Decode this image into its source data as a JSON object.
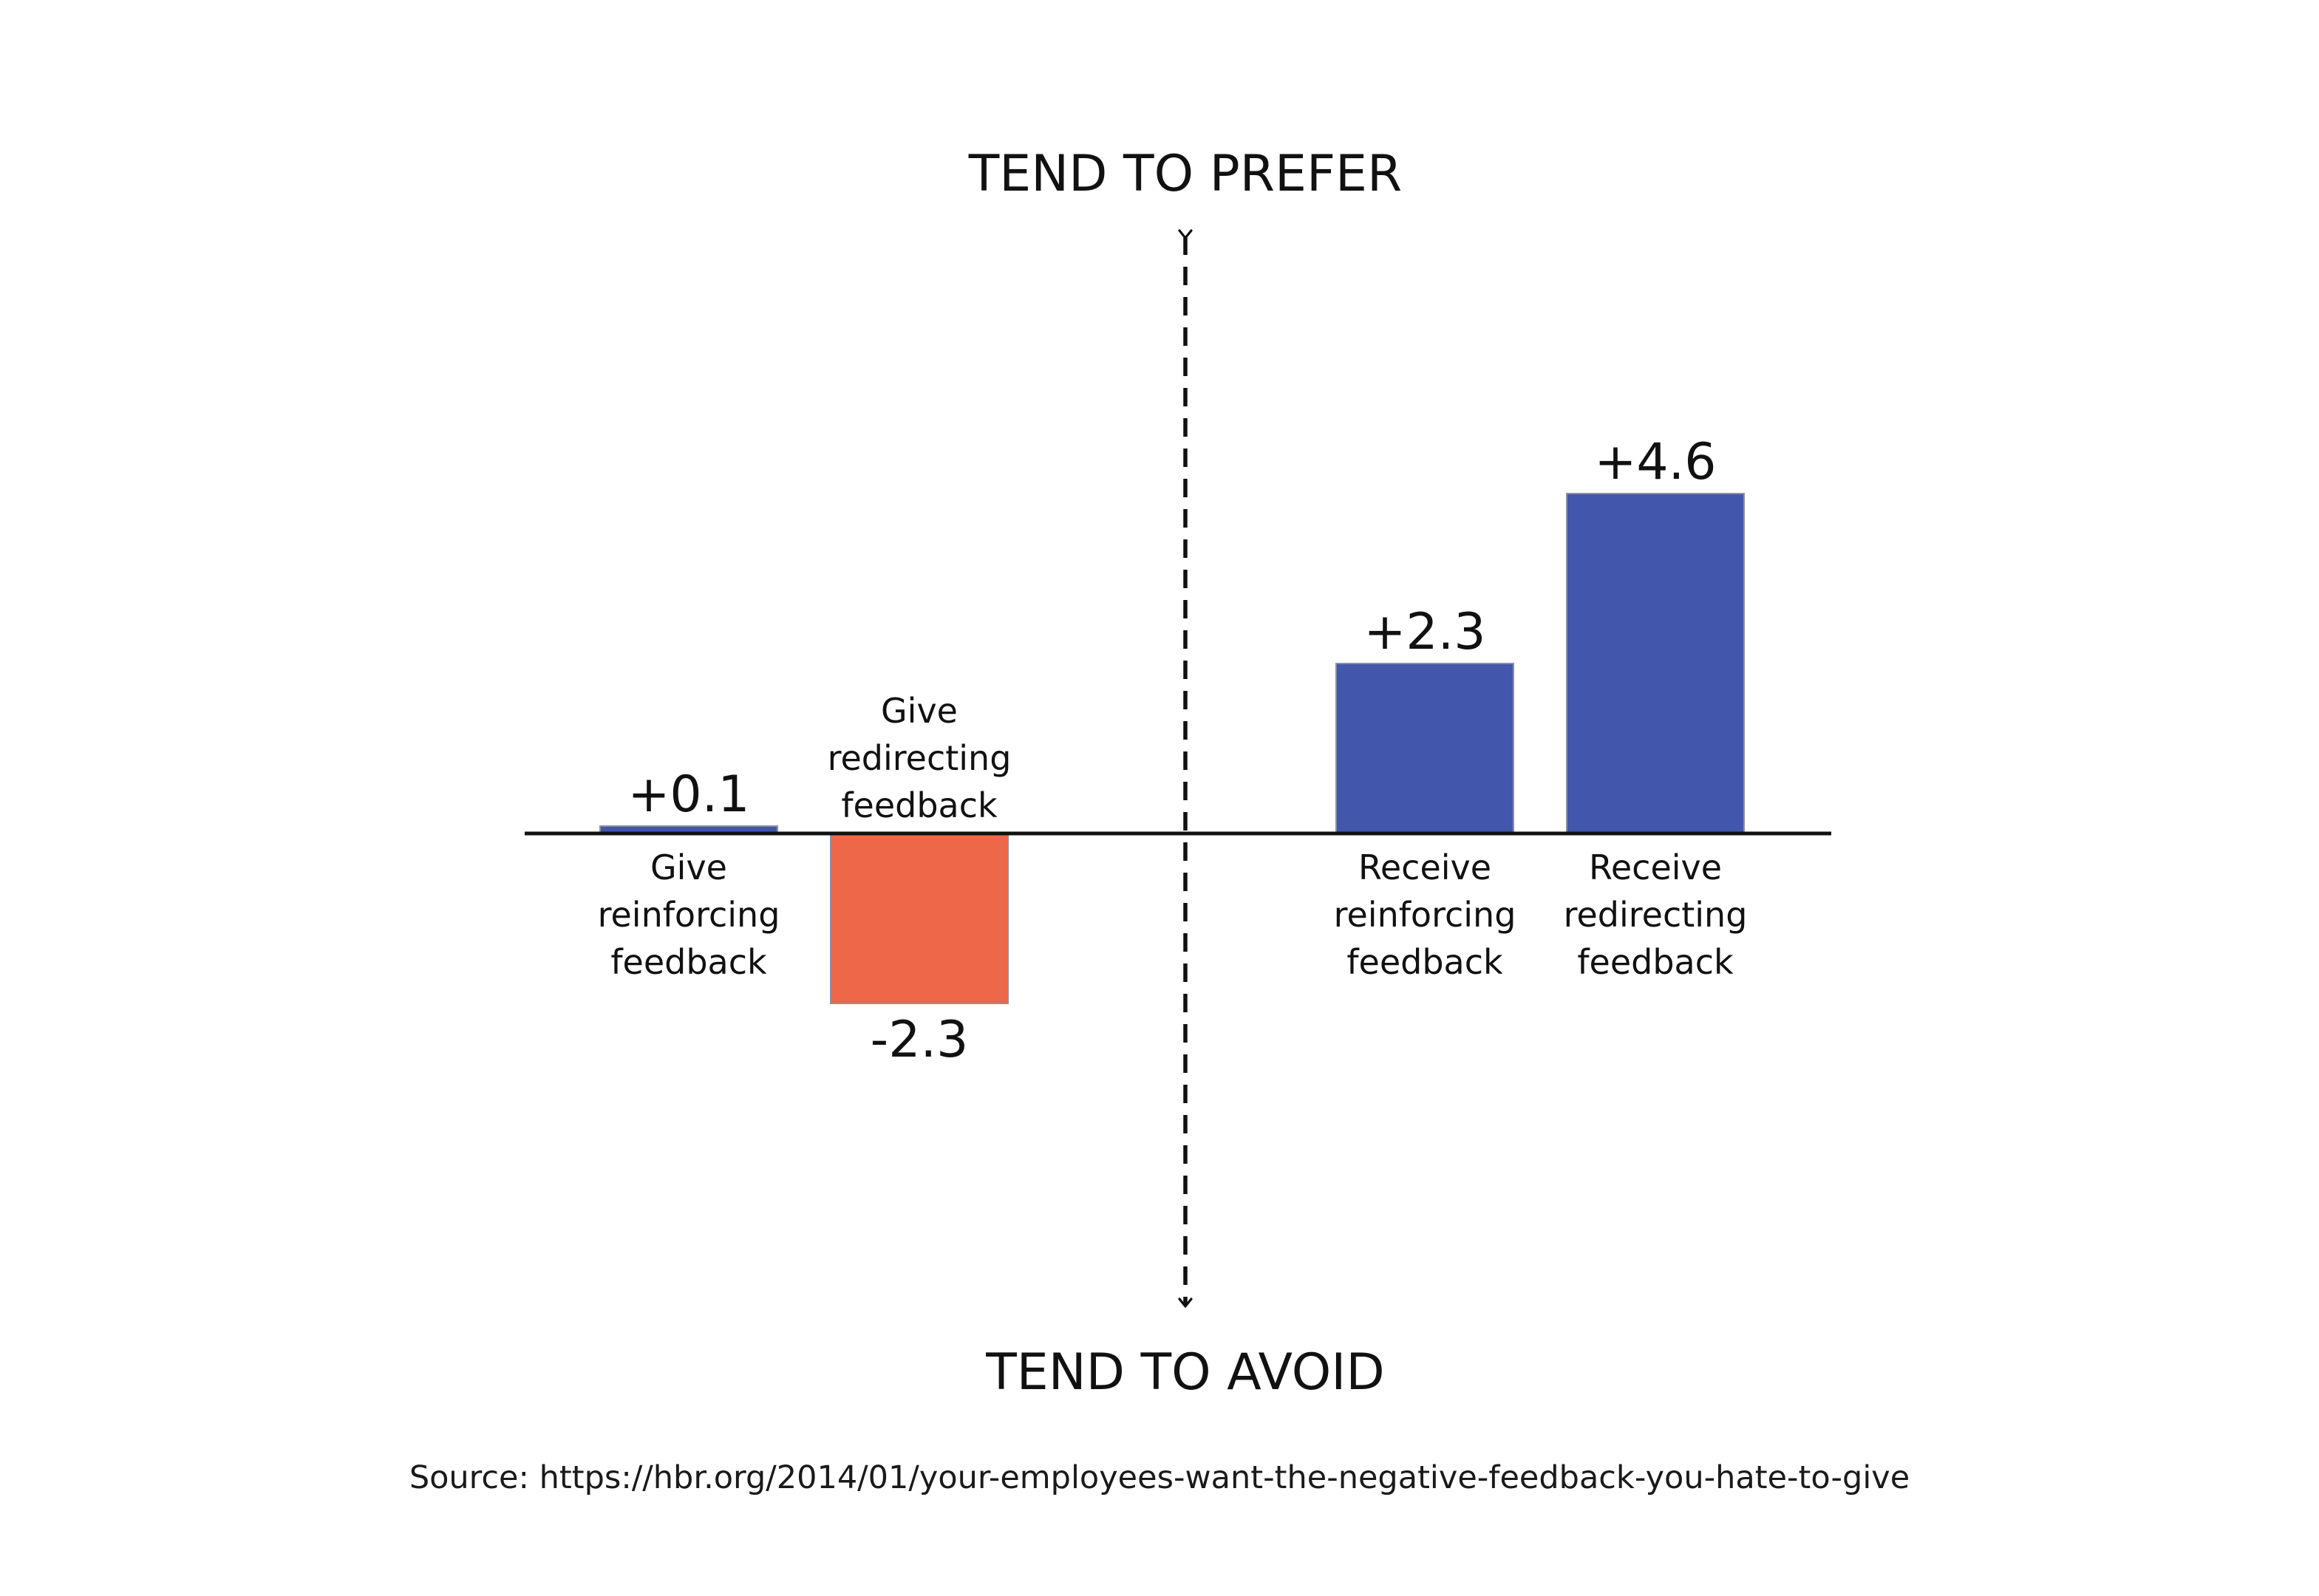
{
  "chart_data": {
    "type": "bar",
    "title": "",
    "xlabel": "",
    "ylabel": "",
    "ylim": [
      -3.0,
      4.6
    ],
    "grid": false,
    "axis_labels": {
      "top": "TEND TO PREFER",
      "bottom": "TEND TO AVOID"
    },
    "categories": [
      [
        "Give",
        "reinforcing",
        "feedback"
      ],
      [
        "Give",
        "redirecting",
        "feedback"
      ],
      [
        "Receive",
        "reinforcing",
        "feedback"
      ],
      [
        "Receive",
        "redirecting",
        "feedback"
      ]
    ],
    "values": [
      0.1,
      -2.3,
      2.3,
      4.6
    ],
    "data_labels": [
      "+0.1",
      "-2.3",
      "+2.3",
      "+4.6"
    ],
    "colors": {
      "positive": "#4257AB",
      "negative": "#EE6748",
      "bar_edge": "#8C8FA3",
      "axis": "#111111",
      "text": "#111111"
    }
  },
  "source": "Source: https://hbr.org/2014/01/your-employees-want-the-negative-feedback-you-hate-to-give"
}
